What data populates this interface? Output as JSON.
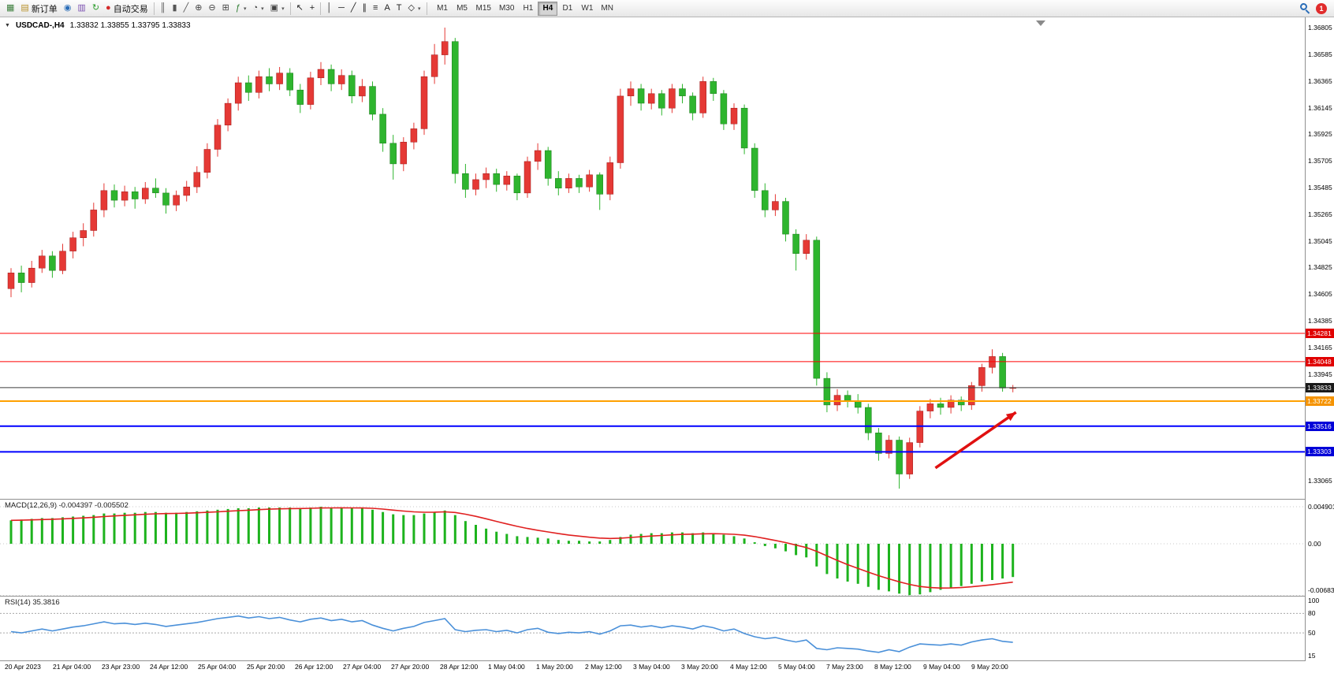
{
  "toolbar": {
    "caret_glyph": "▾",
    "groups": [
      {
        "items": [
          {
            "type": "btn",
            "name": "new-chart-button",
            "icon": "chart-window-icon",
            "glyph": "▦",
            "color": "#3a7d3a"
          },
          {
            "type": "btn",
            "name": "new-order-button",
            "icon": "new-order-icon",
            "glyph": "▤",
            "color": "#b8912a",
            "label": "新订单"
          },
          {
            "type": "btn",
            "name": "navigator-button",
            "icon": "navigator-icon",
            "glyph": "◉",
            "color": "#2a6db8"
          },
          {
            "type": "btn",
            "name": "market-watch-button",
            "icon": "market-watch-icon",
            "glyph": "▥",
            "color": "#7a4fb0"
          },
          {
            "type": "btn",
            "name": "refresh-button",
            "icon": "refresh-icon",
            "glyph": "↻",
            "color": "#2e9e2e"
          },
          {
            "type": "btn",
            "name": "autotrading-button",
            "icon": "autotrading-icon",
            "glyph": "●",
            "color": "#d42a2a",
            "label": "自动交易"
          },
          {
            "type": "sep"
          },
          {
            "type": "btn",
            "name": "bars-mode-button",
            "icon": "bars-mode-icon",
            "glyph": "║",
            "color": "#555555"
          },
          {
            "type": "btn",
            "name": "candles-mode-button",
            "icon": "candles-mode-icon",
            "glyph": "▮",
            "color": "#555555"
          },
          {
            "type": "btn",
            "name": "line-mode-button",
            "icon": "line-mode-icon",
            "glyph": "╱",
            "color": "#555555"
          },
          {
            "type": "btn",
            "name": "zoom-in-button",
            "icon": "zoom-in-icon",
            "glyph": "⊕",
            "color": "#444444"
          },
          {
            "type": "btn",
            "name": "zoom-out-button",
            "icon": "zoom-out-icon",
            "glyph": "⊖",
            "color": "#444444"
          },
          {
            "type": "btn",
            "name": "tile-windows-button",
            "icon": "tile-windows-icon",
            "glyph": "⊞",
            "color": "#444444"
          },
          {
            "type": "btn",
            "name": "indicators-button",
            "icon": "indicators-icon",
            "glyph": "ƒ",
            "color": "#2e7d32",
            "caret": true
          },
          {
            "type": "btn",
            "name": "periods-button",
            "icon": "clock-icon",
            "glyph": "◔",
            "color": "#444444",
            "caret": true
          },
          {
            "type": "btn",
            "name": "templates-button",
            "icon": "template-icon",
            "glyph": "▣",
            "color": "#444444",
            "caret": true
          },
          {
            "type": "sep"
          },
          {
            "type": "btn",
            "name": "cursor-button",
            "icon": "cursor-icon",
            "glyph": "↖",
            "color": "#222222"
          },
          {
            "type": "btn",
            "name": "crosshair-button",
            "icon": "crosshair-icon",
            "glyph": "+",
            "color": "#222222"
          },
          {
            "type": "sep"
          },
          {
            "type": "btn",
            "name": "vertical-line-button",
            "icon": "vertical-line-icon",
            "glyph": "│",
            "color": "#222222"
          },
          {
            "type": "btn",
            "name": "horizontal-line-button",
            "icon": "horizontal-line-icon",
            "glyph": "─",
            "color": "#222222"
          },
          {
            "type": "btn",
            "name": "trendline-button",
            "icon": "trendline-icon",
            "glyph": "╱",
            "color": "#222222"
          },
          {
            "type": "btn",
            "name": "channel-button",
            "icon": "equidistant-channel-icon",
            "glyph": "∥",
            "color": "#222222"
          },
          {
            "type": "btn",
            "name": "fibonacci-button",
            "icon": "fibonacci-icon",
            "glyph": "≡",
            "color": "#222222"
          },
          {
            "type": "btn",
            "name": "text-button",
            "icon": "text-icon",
            "glyph": "A",
            "color": "#222222"
          },
          {
            "type": "btn",
            "name": "label-button",
            "icon": "text-label-icon",
            "glyph": "T",
            "color": "#222222"
          },
          {
            "type": "btn",
            "name": "shapes-button",
            "icon": "shapes-icon",
            "glyph": "◇",
            "color": "#222222",
            "caret": true
          },
          {
            "type": "sep"
          }
        ]
      }
    ],
    "timeframes": {
      "items": [
        "M1",
        "M5",
        "M15",
        "M30",
        "H1",
        "H4",
        "D1",
        "W1",
        "MN"
      ],
      "active": "H4"
    },
    "right": {
      "badge": "1"
    }
  },
  "chart_data": {
    "type": "candlestick",
    "symbol": "USDCAD-",
    "timeframe": "H4",
    "title_text": "USDCAD-,H4",
    "ohlc_text": "1.33832 1.33855 1.33795 1.33833",
    "price_axis": {
      "top": 1.36805,
      "bottom": 1.33065,
      "labels": [
        "1.36805",
        "1.36585",
        "1.36365",
        "1.36145",
        "1.35925",
        "1.35705",
        "1.35485",
        "1.35265",
        "1.35045",
        "1.34825",
        "1.34605",
        "1.34385",
        "1.34165",
        "1.33945",
        "1.33725",
        "1.33505",
        "1.33285",
        "1.33065"
      ]
    },
    "candles": [
      [
        1.3465,
        1.3482,
        1.3458,
        1.3478
      ],
      [
        1.3478,
        1.3484,
        1.3462,
        1.347
      ],
      [
        1.347,
        1.3488,
        1.3466,
        1.3482
      ],
      [
        1.3482,
        1.3497,
        1.3478,
        1.3492
      ],
      [
        1.3492,
        1.3496,
        1.3474,
        1.348
      ],
      [
        1.348,
        1.3502,
        1.3477,
        1.3496
      ],
      [
        1.3496,
        1.3512,
        1.349,
        1.3507
      ],
      [
        1.3507,
        1.3519,
        1.35,
        1.3513
      ],
      [
        1.3513,
        1.3536,
        1.3508,
        1.353
      ],
      [
        1.353,
        1.3552,
        1.3524,
        1.3546
      ],
      [
        1.3546,
        1.3551,
        1.3532,
        1.3538
      ],
      [
        1.3538,
        1.355,
        1.3533,
        1.3545
      ],
      [
        1.3545,
        1.3549,
        1.3531,
        1.3539
      ],
      [
        1.3539,
        1.3553,
        1.3535,
        1.3548
      ],
      [
        1.3548,
        1.3556,
        1.354,
        1.3544
      ],
      [
        1.3544,
        1.3548,
        1.3527,
        1.3534
      ],
      [
        1.3534,
        1.3546,
        1.3529,
        1.3542
      ],
      [
        1.3542,
        1.3554,
        1.3537,
        1.3549
      ],
      [
        1.3549,
        1.3566,
        1.3544,
        1.3561
      ],
      [
        1.3561,
        1.3585,
        1.3556,
        1.358
      ],
      [
        1.358,
        1.3605,
        1.3574,
        1.36
      ],
      [
        1.36,
        1.3622,
        1.3595,
        1.3618
      ],
      [
        1.3618,
        1.364,
        1.3612,
        1.3635
      ],
      [
        1.3635,
        1.3641,
        1.362,
        1.3627
      ],
      [
        1.3627,
        1.3645,
        1.3622,
        1.364
      ],
      [
        1.364,
        1.3647,
        1.3628,
        1.3634
      ],
      [
        1.3634,
        1.3648,
        1.3629,
        1.3643
      ],
      [
        1.3643,
        1.3647,
        1.3624,
        1.3629
      ],
      [
        1.3629,
        1.3634,
        1.361,
        1.3617
      ],
      [
        1.3617,
        1.3644,
        1.3613,
        1.3639
      ],
      [
        1.3639,
        1.3652,
        1.3633,
        1.3646
      ],
      [
        1.3646,
        1.365,
        1.3628,
        1.3634
      ],
      [
        1.3634,
        1.3646,
        1.3629,
        1.3641
      ],
      [
        1.3641,
        1.3645,
        1.3618,
        1.3624
      ],
      [
        1.3624,
        1.3638,
        1.3619,
        1.3632
      ],
      [
        1.3632,
        1.3636,
        1.3604,
        1.3609
      ],
      [
        1.3609,
        1.3614,
        1.3578,
        1.3585
      ],
      [
        1.3585,
        1.3592,
        1.3555,
        1.3568
      ],
      [
        1.3568,
        1.359,
        1.3562,
        1.3586
      ],
      [
        1.3586,
        1.3602,
        1.358,
        1.3597
      ],
      [
        1.3597,
        1.3645,
        1.3592,
        1.364
      ],
      [
        1.364,
        1.3667,
        1.3634,
        1.3658
      ],
      [
        1.3658,
        1.36805,
        1.365,
        1.3669
      ],
      [
        1.3669,
        1.3672,
        1.3552,
        1.356
      ],
      [
        1.356,
        1.3568,
        1.354,
        1.3547
      ],
      [
        1.3547,
        1.356,
        1.3542,
        1.3555
      ],
      [
        1.3555,
        1.3565,
        1.3548,
        1.356
      ],
      [
        1.356,
        1.3564,
        1.3545,
        1.3551
      ],
      [
        1.3551,
        1.3562,
        1.3546,
        1.3558
      ],
      [
        1.3558,
        1.356,
        1.3538,
        1.3544
      ],
      [
        1.3544,
        1.3574,
        1.354,
        1.357
      ],
      [
        1.357,
        1.3585,
        1.3563,
        1.3579
      ],
      [
        1.3579,
        1.3582,
        1.355,
        1.3556
      ],
      [
        1.3556,
        1.3562,
        1.3542,
        1.3548
      ],
      [
        1.3548,
        1.356,
        1.3544,
        1.3556
      ],
      [
        1.3556,
        1.3559,
        1.3544,
        1.3549
      ],
      [
        1.3549,
        1.3563,
        1.3545,
        1.3559
      ],
      [
        1.3559,
        1.3561,
        1.353,
        1.3543
      ],
      [
        1.3543,
        1.3574,
        1.3538,
        1.3569
      ],
      [
        1.3569,
        1.363,
        1.3564,
        1.3624
      ],
      [
        1.3624,
        1.3636,
        1.3616,
        1.363
      ],
      [
        1.363,
        1.3634,
        1.3612,
        1.3618
      ],
      [
        1.3618,
        1.363,
        1.3613,
        1.3626
      ],
      [
        1.3626,
        1.3629,
        1.3608,
        1.3614
      ],
      [
        1.3614,
        1.3634,
        1.361,
        1.363
      ],
      [
        1.363,
        1.3634,
        1.3618,
        1.3624
      ],
      [
        1.3624,
        1.3627,
        1.3604,
        1.361
      ],
      [
        1.361,
        1.364,
        1.3606,
        1.3636
      ],
      [
        1.3636,
        1.3639,
        1.362,
        1.3626
      ],
      [
        1.3626,
        1.3629,
        1.3596,
        1.3601
      ],
      [
        1.3601,
        1.3618,
        1.3596,
        1.3614
      ],
      [
        1.3614,
        1.3617,
        1.3576,
        1.3581
      ],
      [
        1.3581,
        1.3585,
        1.354,
        1.3546
      ],
      [
        1.3546,
        1.3552,
        1.3524,
        1.353
      ],
      [
        1.353,
        1.3543,
        1.3525,
        1.3537
      ],
      [
        1.3537,
        1.354,
        1.3504,
        1.351
      ],
      [
        1.351,
        1.3514,
        1.348,
        1.3494
      ],
      [
        1.3494,
        1.351,
        1.3489,
        1.3505
      ],
      [
        1.3505,
        1.3508,
        1.3385,
        1.3391
      ],
      [
        1.3391,
        1.3396,
        1.3363,
        1.3369
      ],
      [
        1.3369,
        1.3382,
        1.3364,
        1.3377
      ],
      [
        1.3377,
        1.3381,
        1.3367,
        1.3372
      ],
      [
        1.3372,
        1.3378,
        1.3362,
        1.3367
      ],
      [
        1.3367,
        1.337,
        1.334,
        1.3346
      ],
      [
        1.3346,
        1.335,
        1.3323,
        1.3329
      ],
      [
        1.3329,
        1.3344,
        1.3325,
        1.334
      ],
      [
        1.334,
        1.3343,
        1.33,
        1.3312
      ],
      [
        1.3312,
        1.3342,
        1.3308,
        1.3338
      ],
      [
        1.3338,
        1.3368,
        1.3334,
        1.3364
      ],
      [
        1.3364,
        1.3374,
        1.3358,
        1.337
      ],
      [
        1.337,
        1.3375,
        1.3361,
        1.3367
      ],
      [
        1.3367,
        1.3377,
        1.3362,
        1.3373
      ],
      [
        1.3373,
        1.3376,
        1.3364,
        1.3369
      ],
      [
        1.3369,
        1.3388,
        1.3365,
        1.3385
      ],
      [
        1.3385,
        1.3403,
        1.338,
        1.34
      ],
      [
        1.34,
        1.3415,
        1.3395,
        1.3409
      ],
      [
        1.3409,
        1.3412,
        1.338,
        1.3383
      ],
      [
        1.33832,
        1.33855,
        1.33795,
        1.33833
      ]
    ],
    "levels": [
      {
        "label": "1.34281",
        "value": 1.34281,
        "color": "#ff0000",
        "width": 1,
        "tag_bg": "#e00000"
      },
      {
        "label": "1.34048",
        "value": 1.34048,
        "color": "#ff0000",
        "width": 1,
        "tag_bg": "#e00000"
      },
      {
        "label": "1.33833",
        "value": 1.33833,
        "color": "#3d3d3d",
        "width": 1,
        "tag_bg": "#1a1a1a"
      },
      {
        "label": "1.33722",
        "value": 1.33722,
        "color": "#ffa000",
        "width": 2,
        "tag_bg": "#f59300"
      },
      {
        "label": "1.33516",
        "value": 1.33516,
        "color": "#0000ff",
        "width": 2,
        "tag_bg": "#0000d8"
      },
      {
        "label": "1.33303",
        "value": 1.33303,
        "color": "#0000ff",
        "width": 2,
        "tag_bg": "#0000d8"
      }
    ],
    "arrow": {
      "from_index": 89.5,
      "from_price": 1.3317,
      "to_index": 97.3,
      "to_price": 1.3363,
      "color": "#e01010"
    },
    "macd": {
      "label": "MACD(12,26,9) -0.004397 -0.005502",
      "axis_values": [
        0.004901,
        0,
        -0.006838
      ],
      "axis_labels": [
        "0.004901",
        "0.00",
        "-0.006838"
      ],
      "values": [
        0.0031,
        0.0032,
        0.0033,
        0.0034,
        0.0034,
        0.0035,
        0.0036,
        0.0037,
        0.0038,
        0.004,
        0.004,
        0.0041,
        0.0041,
        0.0042,
        0.0042,
        0.0041,
        0.0041,
        0.0042,
        0.0043,
        0.0044,
        0.0045,
        0.0046,
        0.0047,
        0.0047,
        0.0048,
        0.0048,
        0.0048,
        0.0048,
        0.0047,
        0.0048,
        0.0049,
        0.0048,
        0.0048,
        0.0047,
        0.0047,
        0.0045,
        0.0042,
        0.0039,
        0.0038,
        0.0038,
        0.004,
        0.0042,
        0.0044,
        0.0038,
        0.003,
        0.0025,
        0.002,
        0.0016,
        0.0013,
        0.001,
        0.0009,
        0.0008,
        0.0007,
        0.0005,
        0.0004,
        0.0004,
        0.0003,
        0.0003,
        0.0005,
        0.0009,
        0.0012,
        0.0013,
        0.0014,
        0.0014,
        0.0015,
        0.0015,
        0.0014,
        0.0015,
        0.0014,
        0.0012,
        0.001,
        0.0007,
        0.0002,
        -0.0003,
        -0.0006,
        -0.001,
        -0.0015,
        -0.0018,
        -0.003,
        -0.004,
        -0.0046,
        -0.005,
        -0.0053,
        -0.0057,
        -0.0061,
        -0.0063,
        -0.0066,
        -0.0068,
        -0.0067,
        -0.0064,
        -0.0061,
        -0.0058,
        -0.0056,
        -0.0053,
        -0.005,
        -0.0048,
        -0.0046,
        -0.004397
      ]
    },
    "rsi": {
      "label": "RSI(14) 35.3816",
      "grid_values": [
        80,
        50
      ],
      "axis_values": [
        100,
        80,
        50,
        15
      ],
      "axis_labels": [
        "100",
        "80",
        "50",
        "15"
      ],
      "values": [
        52,
        50,
        53,
        56,
        53,
        56,
        59,
        61,
        64,
        67,
        64,
        65,
        63,
        65,
        63,
        60,
        62,
        64,
        66,
        69,
        72,
        74,
        76,
        73,
        75,
        72,
        74,
        70,
        67,
        71,
        73,
        69,
        71,
        67,
        69,
        62,
        57,
        53,
        57,
        60,
        66,
        69,
        72,
        55,
        52,
        54,
        55,
        52,
        54,
        50,
        55,
        57,
        51,
        49,
        51,
        50,
        52,
        48,
        53,
        61,
        62,
        59,
        61,
        58,
        61,
        59,
        56,
        61,
        58,
        53,
        56,
        49,
        44,
        41,
        43,
        39,
        36,
        39,
        26,
        24,
        27,
        26,
        25,
        22,
        20,
        24,
        21,
        28,
        33,
        32,
        31,
        33,
        31,
        36,
        39,
        41,
        37,
        35.38
      ]
    },
    "time_axis": [
      "20 Apr 2023",
      "21 Apr 04:00",
      "23 Apr 23:00",
      "24 Apr 12:00",
      "25 Apr 04:00",
      "25 Apr 20:00",
      "26 Apr 12:00",
      "27 Apr 04:00",
      "27 Apr 20:00",
      "28 Apr 12:00",
      "1 May 04:00",
      "1 May 20:00",
      "2 May 12:00",
      "3 May 04:00",
      "3 May 20:00",
      "4 May 12:00",
      "5 May 04:00",
      "7 May 23:00",
      "8 May 12:00",
      "9 May 04:00",
      "9 May 20:00"
    ],
    "colors": {
      "bull": "#e53935",
      "bear": "#2eb52e",
      "bull_border": "#9e1a1a",
      "bear_border": "#1a7a1a",
      "macd_hist": "#1db31d",
      "macd_signal": "#e02020",
      "rsi_line": "#4a90d9",
      "grid": "#c8c8c8"
    }
  }
}
